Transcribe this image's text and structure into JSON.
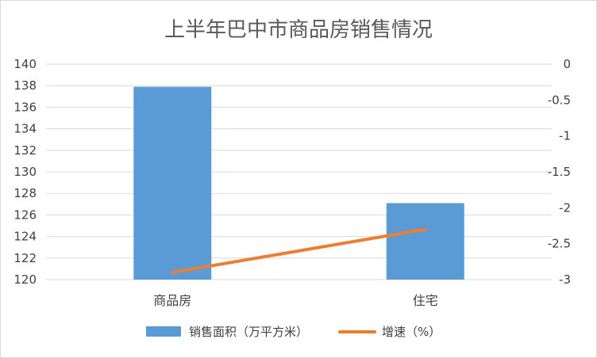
{
  "chart_data": {
    "type": "bar",
    "title": "上半年巴中市商品房销售情况",
    "categories": [
      "商品房",
      "住宅"
    ],
    "series": [
      {
        "name": "销售面积（万平方米）",
        "type": "bar",
        "axis": "left",
        "values": [
          137.9,
          127.1
        ],
        "color": "#5b9bd5"
      },
      {
        "name": "增速（%）",
        "type": "line",
        "axis": "right",
        "values": [
          -2.9,
          -2.3
        ],
        "color": "#ed7d31"
      }
    ],
    "y_left": {
      "min": 120,
      "max": 140,
      "step": 2,
      "ticks": [
        "120",
        "122",
        "124",
        "126",
        "128",
        "130",
        "132",
        "134",
        "136",
        "138",
        "140"
      ]
    },
    "y_right": {
      "min": -3,
      "max": 0,
      "step": 0.5,
      "ticks": [
        "-3",
        "-2.5",
        "-2",
        "-1.5",
        "-1",
        "-0.5",
        "0"
      ]
    },
    "grid": true,
    "legend_position": "bottom"
  }
}
